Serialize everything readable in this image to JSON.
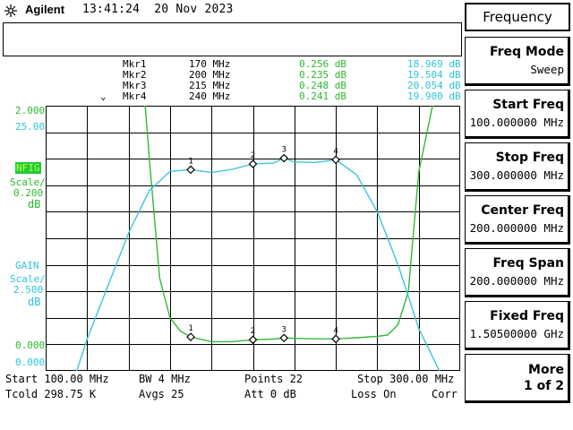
{
  "header": {
    "brand": "Agilent",
    "time": "13:41:24",
    "date": "20 Nov 2023",
    "logo_icon": "agilent-spark-icon"
  },
  "menu": {
    "title": "Frequency",
    "keys": [
      {
        "label": "Freq Mode",
        "value": "Sweep"
      },
      {
        "label": "Start Freq",
        "value": "100.000000 MHz"
      },
      {
        "label": "Stop Freq",
        "value": "300.000000 MHz"
      },
      {
        "label": "Center Freq",
        "value": "200.000000 MHz"
      },
      {
        "label": "Freq Span",
        "value": "200.000000 MHz"
      },
      {
        "label": "Fixed Freq",
        "value": "1.50500000 GHz"
      },
      {
        "label": "More",
        "value": "1 of 2"
      }
    ]
  },
  "markers": {
    "active_marker_icon": "chevron-down-icon",
    "rows": [
      {
        "name": "Mkr1",
        "freq": "170 MHz",
        "nfig": "0.256 dB",
        "gain": "18.969 dB"
      },
      {
        "name": "Mkr2",
        "freq": "200 MHz",
        "nfig": "0.235 dB",
        "gain": "19.504 dB"
      },
      {
        "name": "Mkr3",
        "freq": "215 MHz",
        "nfig": "0.248 dB",
        "gain": "20.054 dB"
      },
      {
        "name": "Mkr4",
        "freq": "240 MHz",
        "nfig": "0.241 dB",
        "gain": "19.900 dB"
      }
    ]
  },
  "scale": {
    "nfig_ref": "2.000",
    "gain_ref": "25.00",
    "nfig_label": "NFIG",
    "nfig_scale_label": "Scale/",
    "nfig_scale_value": "0.200",
    "nfig_unit": "dB",
    "gain_label": "GAIN",
    "gain_scale_label": "Scale/",
    "gain_scale_value": "2.500",
    "gain_unit": "dB",
    "nfig_bottom": "0.000",
    "gain_bottom": "0.000"
  },
  "footer": {
    "start": "Start 100.00 MHz",
    "bw": "BW 4 MHz",
    "points": "Points 22",
    "stop": "Stop 300.00 MHz",
    "tcold": "Tcold 298.75 K",
    "avgs": "Avgs 25",
    "att": "Att 0 dB",
    "loss": "Loss On",
    "corr": "Corr"
  },
  "colors": {
    "nfig_trace": "#35b83a",
    "gain_trace": "#3fc4dc",
    "grid": "#000000",
    "ref_text": "#2db82d"
  },
  "chart_data": {
    "type": "line",
    "x_range_mhz": [
      100,
      300
    ],
    "grid": true,
    "series": [
      {
        "name": "NFIG",
        "unit": "dB",
        "scale_per_div": 0.2,
        "range": [
          0.0,
          2.0
        ],
        "x": [
          100,
          145,
          150,
          155,
          160,
          165,
          170,
          180,
          190,
          200,
          210,
          215,
          220,
          230,
          240,
          250,
          260,
          265,
          270,
          275,
          280,
          300
        ],
        "y": [
          3.0,
          2.6,
          1.6,
          0.7,
          0.4,
          0.3,
          0.256,
          0.22,
          0.22,
          0.235,
          0.24,
          0.248,
          0.245,
          0.242,
          0.241,
          0.25,
          0.26,
          0.27,
          0.35,
          0.6,
          1.5,
          3.0
        ]
      },
      {
        "name": "GAIN",
        "unit": "dB",
        "scale_per_div": 2.5,
        "range": [
          0.0,
          25.0
        ],
        "x": [
          100,
          110,
          115,
          120,
          130,
          140,
          150,
          160,
          165,
          170,
          180,
          190,
          200,
          210,
          215,
          220,
          230,
          240,
          250,
          260,
          270,
          280,
          290,
          295,
          300
        ],
        "y": [
          -3.0,
          -1.0,
          0.0,
          3.0,
          8.0,
          13.0,
          17.0,
          18.8,
          18.9,
          18.969,
          18.7,
          19.0,
          19.504,
          19.6,
          20.054,
          19.7,
          19.65,
          19.9,
          18.5,
          15.0,
          10.0,
          4.0,
          0.0,
          -2.0,
          -3.0
        ]
      }
    ],
    "marker_x_mhz": [
      170,
      200,
      215,
      240
    ],
    "marker_labels": [
      "1",
      "2",
      "3",
      "4"
    ]
  }
}
